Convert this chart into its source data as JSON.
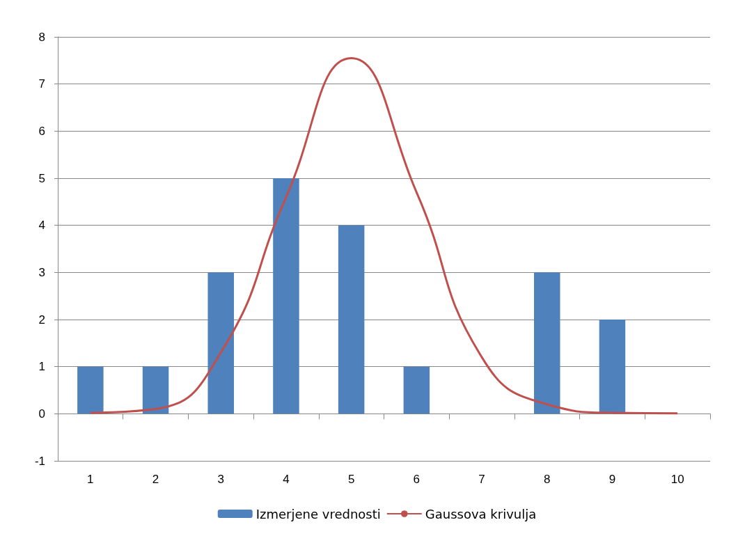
{
  "chart_data": {
    "type": "bar",
    "categories": [
      "1",
      "2",
      "3",
      "4",
      "5",
      "6",
      "7",
      "8",
      "9",
      "10"
    ],
    "series": [
      {
        "name": "Izmerjene vrednosti",
        "color": "#4f81bd",
        "values": [
          1,
          1,
          3,
          5,
          4,
          1,
          null,
          3,
          2,
          null
        ]
      },
      {
        "name": "Gaussova krivulja",
        "type": "line",
        "color": "#c0504d",
        "values": [
          0.02,
          0.1,
          1.3,
          4.6,
          7.55,
          4.7,
          1.2,
          0.2,
          0.02,
          0.01
        ]
      }
    ],
    "ylim": [
      -1,
      8
    ],
    "yticks": [
      -1,
      0,
      1,
      2,
      3,
      4,
      5,
      6,
      7,
      8
    ],
    "grid": "y",
    "legend": "bottom",
    "marker": "none"
  }
}
